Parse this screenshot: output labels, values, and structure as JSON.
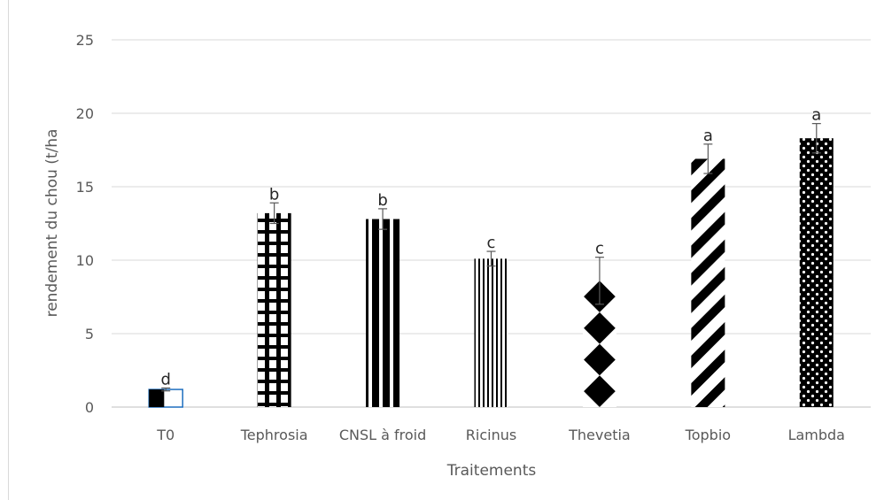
{
  "chart_data": {
    "type": "bar",
    "xlabel": "Traitements",
    "ylabel": "rendement du chou (t/ha",
    "ylim": [
      0,
      25
    ],
    "yticks": [
      0,
      5,
      10,
      15,
      20,
      25
    ],
    "grid": true,
    "categories": [
      "T0",
      "Tephrosia",
      "CNSL à froid",
      "Ricinus",
      "Thevetia",
      "Topbio",
      "Lambda"
    ],
    "values": [
      1.2,
      13.2,
      12.8,
      10.1,
      8.6,
      16.9,
      18.3
    ],
    "errors": [
      0.1,
      0.7,
      0.7,
      0.5,
      1.6,
      1.0,
      1.0
    ],
    "significance_letters": [
      "d",
      "b",
      "b",
      "c",
      "c",
      "a",
      "a"
    ],
    "patterns": [
      "half-black",
      "grid",
      "thick-vertical",
      "thin-vertical",
      "diamonds",
      "diagonal",
      "dots"
    ]
  }
}
